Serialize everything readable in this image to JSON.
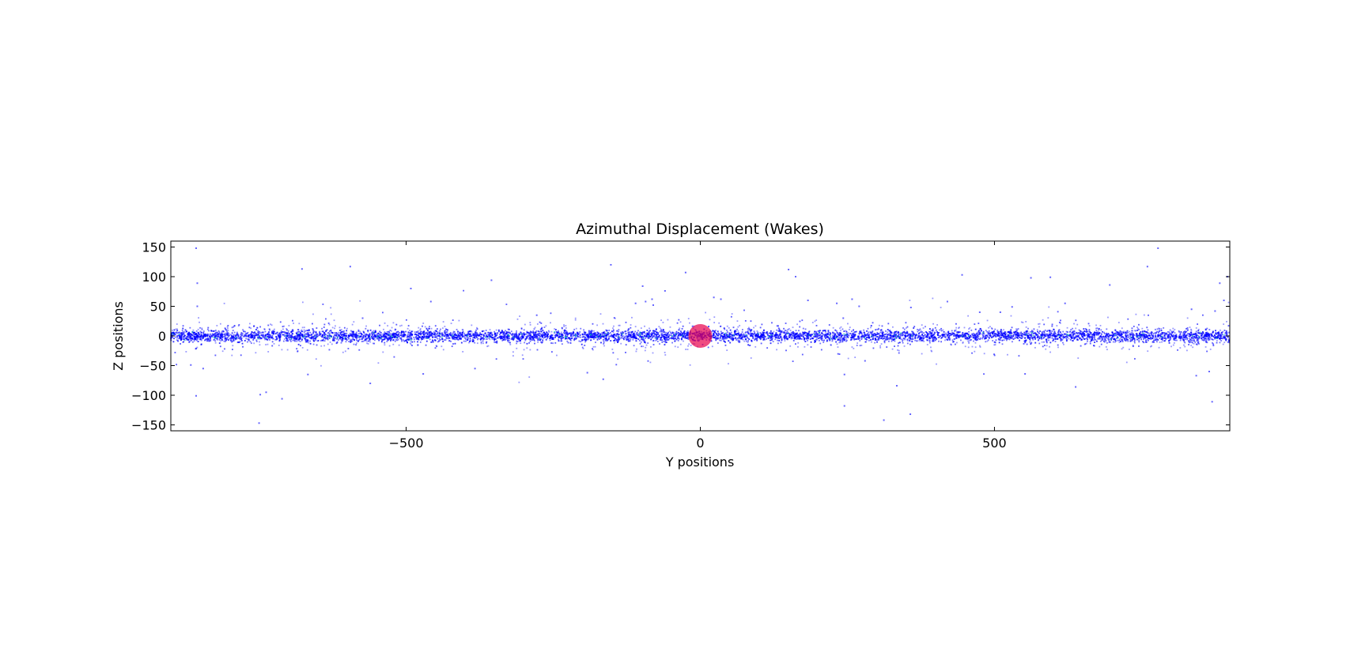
{
  "chart_data": {
    "type": "scatter",
    "title": "Azimuthal Displacement (Wakes)",
    "xlabel": "Y positions",
    "ylabel": "Z positions",
    "xlim": [
      -900,
      900
    ],
    "ylim": [
      -160,
      160
    ],
    "xticks": [
      -500,
      0,
      500
    ],
    "xtick_labels": [
      "−500",
      "0",
      "500"
    ],
    "yticks": [
      150,
      100,
      50,
      0,
      -50,
      -100,
      -150
    ],
    "ytick_labels": [
      "150",
      "100",
      "50",
      "0",
      "−50",
      "−100",
      "−150"
    ],
    "grid": false,
    "colors": {
      "particles": "#0000ff",
      "body": "#e8004a",
      "accent": "#00c8a0"
    },
    "series": [
      {
        "kind": "particle-band",
        "color": "#0000ff",
        "center_z": 0,
        "core_half_width_z": 8,
        "x_range": [
          -900,
          900
        ],
        "outliers": [
          [
            -857,
            148
          ],
          [
            -855,
            89
          ],
          [
            -855,
            50
          ],
          [
            -857,
            -101
          ],
          [
            -866,
            -49
          ],
          [
            -845,
            -55
          ],
          [
            -750,
            -147
          ],
          [
            -748,
            -99
          ],
          [
            -738,
            -95
          ],
          [
            -711,
            -106
          ],
          [
            -677,
            113
          ],
          [
            -667,
            -65
          ],
          [
            -595,
            117
          ],
          [
            -574,
            30
          ],
          [
            -561,
            -80
          ],
          [
            -492,
            80
          ],
          [
            -471,
            -64
          ],
          [
            -458,
            58
          ],
          [
            -355,
            94
          ],
          [
            -383,
            -55
          ],
          [
            -278,
            35
          ],
          [
            -192,
            -62
          ],
          [
            -165,
            -73
          ],
          [
            -152,
            120
          ],
          [
            -110,
            55
          ],
          [
            -98,
            84
          ],
          [
            -93,
            58
          ],
          [
            -82,
            62
          ],
          [
            -80,
            52
          ],
          [
            -60,
            76
          ],
          [
            -25,
            107
          ],
          [
            23,
            65
          ],
          [
            35,
            62
          ],
          [
            150,
            112
          ],
          [
            162,
            100
          ],
          [
            183,
            60
          ],
          [
            232,
            55
          ],
          [
            243,
            30
          ],
          [
            245,
            -65
          ],
          [
            245,
            -118
          ],
          [
            258,
            62
          ],
          [
            270,
            50
          ],
          [
            280,
            -42
          ],
          [
            312,
            -142
          ],
          [
            334,
            -84
          ],
          [
            357,
            -132
          ],
          [
            358,
            48
          ],
          [
            420,
            58
          ],
          [
            445,
            103
          ],
          [
            475,
            40
          ],
          [
            510,
            40
          ],
          [
            530,
            49
          ],
          [
            552,
            -64
          ],
          [
            562,
            98
          ],
          [
            595,
            99
          ],
          [
            620,
            55
          ],
          [
            638,
            -86
          ],
          [
            696,
            86
          ],
          [
            760,
            117
          ],
          [
            778,
            148
          ],
          [
            835,
            45
          ],
          [
            843,
            -67
          ],
          [
            865,
            -60
          ],
          [
            870,
            -111
          ],
          [
            875,
            42
          ],
          [
            883,
            89
          ],
          [
            890,
            60
          ],
          [
            896,
            100
          ]
        ]
      },
      {
        "kind": "central-body",
        "color": "#e8004a",
        "x": 0,
        "z": 0,
        "radius": 15
      }
    ]
  }
}
